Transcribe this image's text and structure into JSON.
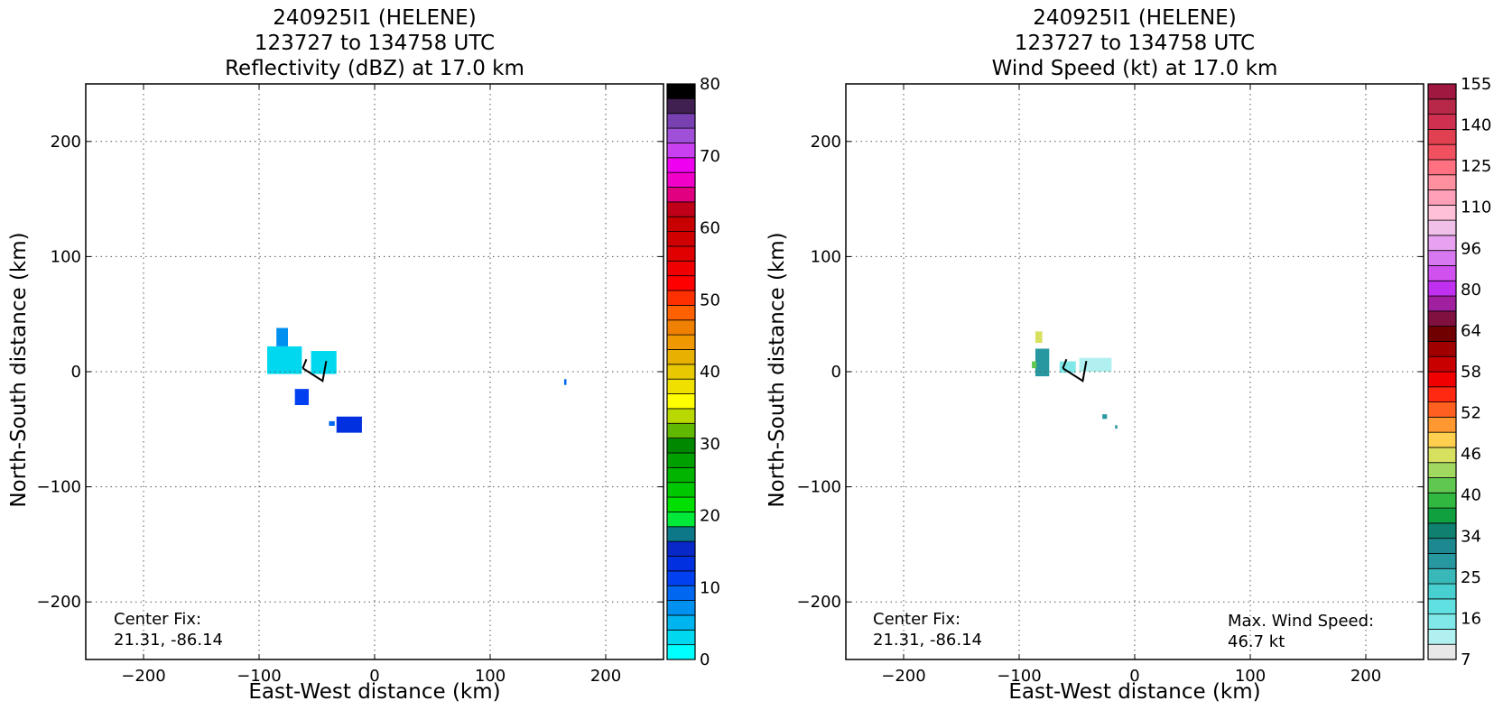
{
  "chart_data": [
    {
      "type": "heatmap",
      "title_lines": [
        "240925I1 (HELENE)",
        "123727 to 134758 UTC",
        "Reflectivity (dBZ) at 17.0 km"
      ],
      "xlabel": "East-West distance (km)",
      "ylabel": "North-South distance (km)",
      "xlim": [
        -250,
        250
      ],
      "ylim": [
        -250,
        250
      ],
      "xticks": [
        -200,
        -100,
        0,
        100,
        200
      ],
      "yticks": [
        -200,
        -100,
        0,
        100,
        200
      ],
      "grid": true,
      "annotations": [
        {
          "text": [
            "Center Fix:",
            "21.31, -86.14"
          ],
          "anchor": "bottom-left"
        }
      ],
      "colorbar": {
        "min": 0,
        "max": 80,
        "tick_labels": [
          "0",
          "10",
          "20",
          "30",
          "40",
          "50",
          "60",
          "70",
          "80"
        ],
        "colors": [
          "#00ffff",
          "#00d8ef",
          "#00b4ef",
          "#0090f0",
          "#0068f0",
          "#0040f0",
          "#0030e0",
          "#0828c8",
          "#0c7888",
          "#00e838",
          "#00e000",
          "#00c800",
          "#00b400",
          "#00a000",
          "#008800",
          "#60b800",
          "#b8d800",
          "#ffff00",
          "#f0e000",
          "#e8c800",
          "#e8b000",
          "#f09800",
          "#f08000",
          "#ff6000",
          "#ff3000",
          "#ff0000",
          "#f00000",
          "#e00000",
          "#d00000",
          "#c80000",
          "#c00018",
          "#e00080",
          "#f000c8",
          "#f000f0",
          "#c840f0",
          "#a050d8",
          "#7840b0",
          "#402050",
          "#000000"
        ]
      },
      "wind_barb": {
        "x_km": -45,
        "y_km": -8,
        "label": "center wind barb"
      },
      "echo_regions": [
        {
          "x_km": -78,
          "y_km": 10,
          "dx_km": 30,
          "dy_km": 24,
          "color": "#00d8ef",
          "value_dbz": 4
        },
        {
          "x_km": -80,
          "y_km": 30,
          "dx_km": 10,
          "dy_km": 16,
          "color": "#0090f0",
          "value_dbz": 7
        },
        {
          "x_km": -44,
          "y_km": 8,
          "dx_km": 22,
          "dy_km": 20,
          "color": "#00d8ef",
          "value_dbz": 4
        },
        {
          "x_km": -63,
          "y_km": -22,
          "dx_km": 12,
          "dy_km": 14,
          "color": "#0040f0",
          "value_dbz": 12
        },
        {
          "x_km": -22,
          "y_km": -46,
          "dx_km": 22,
          "dy_km": 14,
          "color": "#0030e0",
          "value_dbz": 13
        },
        {
          "x_km": -37,
          "y_km": -45,
          "dx_km": 5,
          "dy_km": 4,
          "color": "#0068f0",
          "value_dbz": 10
        },
        {
          "x_km": 165,
          "y_km": -9,
          "dx_km": 2,
          "dy_km": 5,
          "color": "#0068f0",
          "value_dbz": 10
        }
      ]
    },
    {
      "type": "heatmap",
      "title_lines": [
        "240925I1 (HELENE)",
        "123727 to 134758 UTC",
        "Wind Speed (kt) at 17.0 km"
      ],
      "xlabel": "East-West distance (km)",
      "ylabel": "North-South distance (km)",
      "xlim": [
        -250,
        250
      ],
      "ylim": [
        -250,
        250
      ],
      "xticks": [
        -200,
        -100,
        0,
        100,
        200
      ],
      "yticks": [
        -200,
        -100,
        0,
        100,
        200
      ],
      "grid": true,
      "annotations": [
        {
          "text": [
            "Center Fix:",
            "21.31, -86.14"
          ],
          "anchor": "bottom-left"
        },
        {
          "text": [
            "Max. Wind Speed:",
            "46.7 kt"
          ],
          "anchor": "bottom-right"
        }
      ],
      "colorbar": {
        "tick_labels": [
          "7",
          "16",
          "25",
          "34",
          "40",
          "46",
          "52",
          "58",
          "64",
          "80",
          "96",
          "110",
          "125",
          "140",
          "155"
        ],
        "colors": [
          "#e8e8e8",
          "#b0f0f0",
          "#80e8e8",
          "#60e0e0",
          "#48d0d0",
          "#38b8b8",
          "#2898a0",
          "#1e8890",
          "#108070",
          "#10a040",
          "#30b840",
          "#60c850",
          "#a0d860",
          "#d8e060",
          "#ffd050",
          "#ff9830",
          "#ff6020",
          "#ff2810",
          "#f00000",
          "#c80000",
          "#a00000",
          "#700000",
          "#801040",
          "#a020a0",
          "#c030f0",
          "#d050f0",
          "#d878f0",
          "#e8a0f0",
          "#f0c0e8",
          "#ffc0d8",
          "#ffa0b8",
          "#ff90a0",
          "#ff7080",
          "#f05060",
          "#e04050",
          "#d03050",
          "#b82848",
          "#a01840"
        ]
      },
      "wind_barb": {
        "x_km": -45,
        "y_km": -8,
        "label": "center wind barb"
      },
      "echo_regions": [
        {
          "x_km": -80,
          "y_km": 8,
          "dx_km": 12,
          "dy_km": 24,
          "color": "#2898a0",
          "value_kt": 24
        },
        {
          "x_km": -83,
          "y_km": 30,
          "dx_km": 6,
          "dy_km": 10,
          "color": "#d8e060",
          "value_kt": 44
        },
        {
          "x_km": -87,
          "y_km": 6,
          "dx_km": 4,
          "dy_km": 6,
          "color": "#60c850",
          "value_kt": 40
        },
        {
          "x_km": -34,
          "y_km": 6,
          "dx_km": 28,
          "dy_km": 12,
          "color": "#b0f0f0",
          "value_kt": 10
        },
        {
          "x_km": -58,
          "y_km": 4,
          "dx_km": 14,
          "dy_km": 10,
          "color": "#80e8e8",
          "value_kt": 13
        },
        {
          "x_km": -26,
          "y_km": -39,
          "dx_km": 4,
          "dy_km": 4,
          "color": "#2898a0",
          "value_kt": 24
        },
        {
          "x_km": -16,
          "y_km": -48,
          "dx_km": 2,
          "dy_km": 3,
          "color": "#2898a0",
          "value_kt": 24
        }
      ]
    }
  ]
}
